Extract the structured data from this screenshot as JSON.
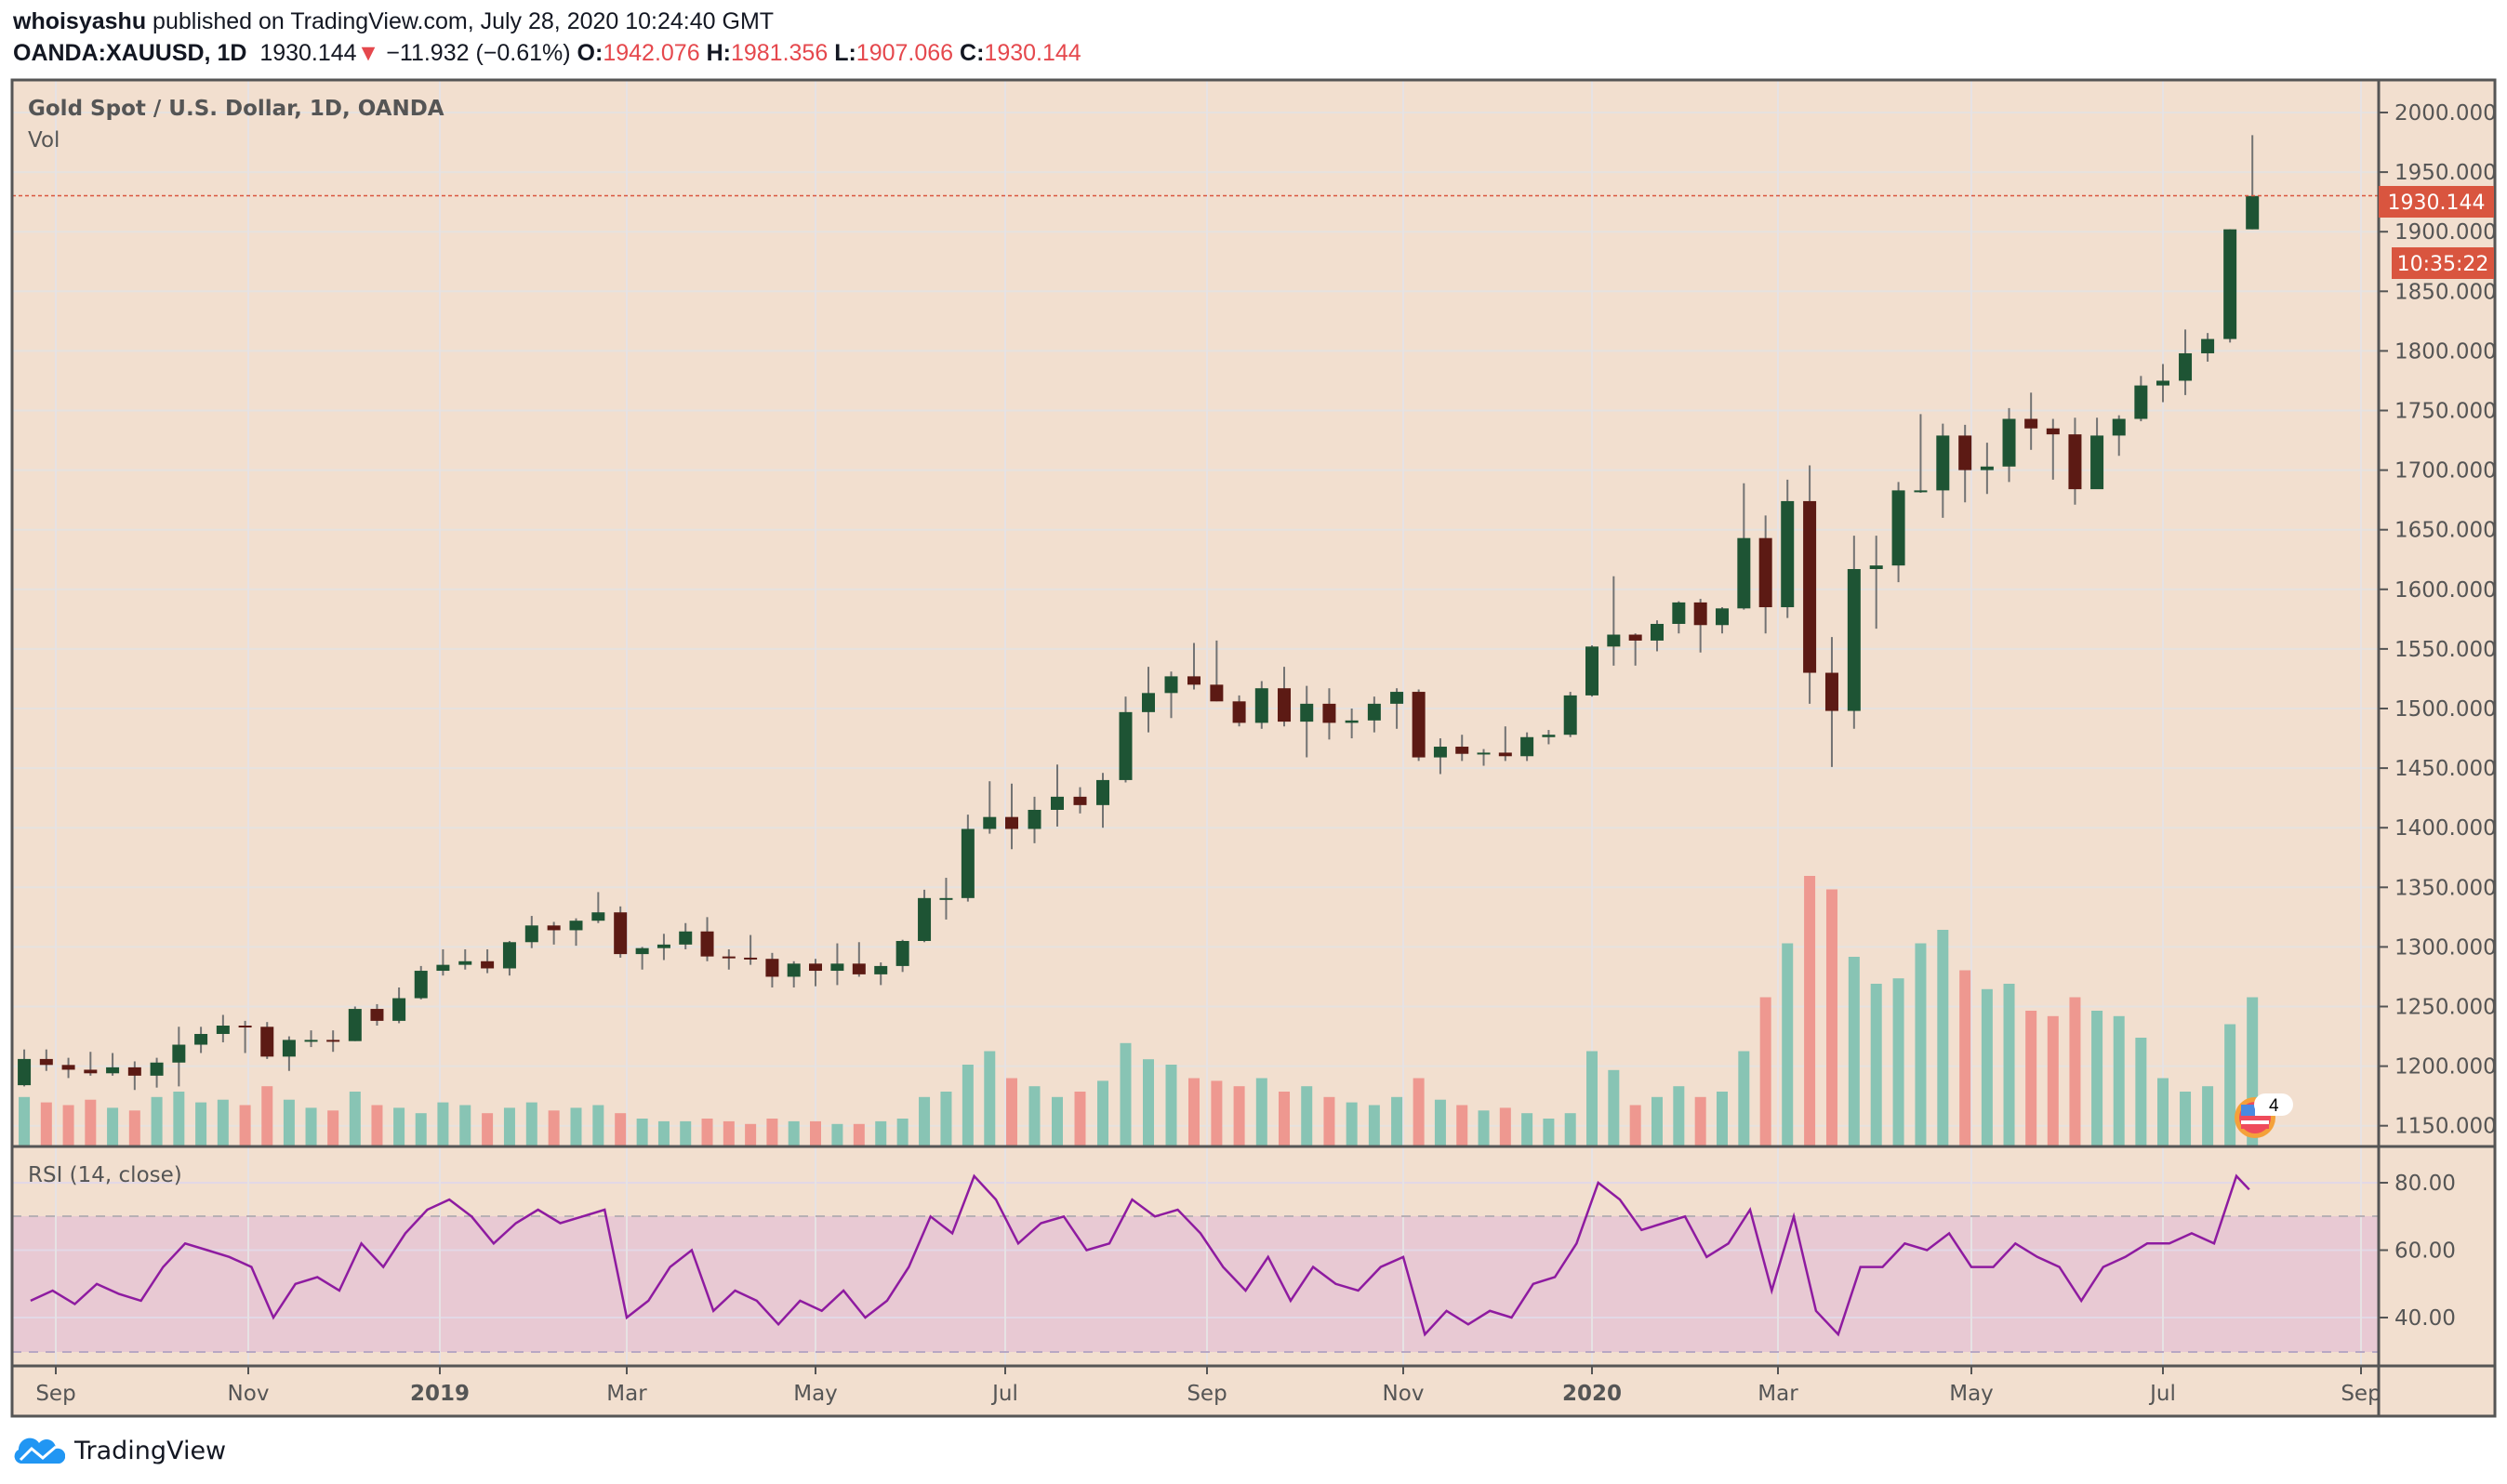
{
  "header": {
    "author": "whoisyashu",
    "published": "published on TradingView.com, July 28, 2020 10:24:40 GMT",
    "symbol": "OANDA:XAUUSD, 1D",
    "last": "1930.144",
    "change_icon": "triangle-down-icon",
    "change": "−11.932 (−0.61%)",
    "o_label": "O:",
    "o": "1942.076",
    "h_label": "H:",
    "h": "1981.356",
    "l_label": "L:",
    "l": "1907.066",
    "c_label": "C:",
    "c": "1930.144"
  },
  "footer": {
    "brand": "TradingView",
    "logo_icon": "tradingview-cloud-logo-icon"
  },
  "colors": {
    "background": "#f2dfcf",
    "up_candle": "#1e5434",
    "down_candle": "#5c1a14",
    "wick": "#737373",
    "volume_up": "#88c4b4",
    "volume_down": "#ee9890",
    "rsi_line": "#8e1ba0",
    "rsi_band": "#e8c9d3",
    "last_price": "#d9553f"
  },
  "chart_data": {
    "type": "candlestick",
    "title": "Gold Spot / U.S. Dollar, 1D, OANDA",
    "volume_label": "Vol",
    "rsi_label": "RSI (14, close)",
    "last_price_label": "1930.144",
    "countdown_label": "10:35:22",
    "event_badge": {
      "icon": "us-flag-economic-event-icon",
      "count": "4"
    },
    "ylim": [
      1125,
      2010
    ],
    "grid": true,
    "price_ticks": [
      "2000.000",
      "1950.000",
      "1900.000",
      "1850.000",
      "1800.000",
      "1750.000",
      "1700.000",
      "1650.000",
      "1600.000",
      "1550.000",
      "1500.000",
      "1450.000",
      "1400.000",
      "1350.000",
      "1300.000",
      "1250.000",
      "1200.000",
      "1150.000"
    ],
    "rsi_ticks": [
      "80.00",
      "60.00",
      "40.00"
    ],
    "rsi_band": [
      30,
      70
    ],
    "time_ticks": [
      {
        "label": "Sep",
        "date": "2018-09-01",
        "bold": false
      },
      {
        "label": "Nov",
        "date": "2018-11-01",
        "bold": false
      },
      {
        "label": "2019",
        "date": "2019-01-01",
        "bold": true
      },
      {
        "label": "Mar",
        "date": "2019-03-01",
        "bold": false
      },
      {
        "label": "May",
        "date": "2019-05-01",
        "bold": false
      },
      {
        "label": "Jul",
        "date": "2019-07-01",
        "bold": false
      },
      {
        "label": "Sep",
        "date": "2019-09-01",
        "bold": false
      },
      {
        "label": "Nov",
        "date": "2019-11-01",
        "bold": false
      },
      {
        "label": "2020",
        "date": "2020-01-01",
        "bold": true
      },
      {
        "label": "Mar",
        "date": "2020-03-01",
        "bold": false
      },
      {
        "label": "May",
        "date": "2020-05-01",
        "bold": false
      },
      {
        "label": "Jul",
        "date": "2020-07-01",
        "bold": false
      },
      {
        "label": "Sep",
        "date": "2020-09-01",
        "bold": false
      }
    ],
    "ohlc_columns": [
      "week",
      "open",
      "high",
      "low",
      "close"
    ],
    "ohlc": [
      [
        "2018-08-20",
        1184,
        1214,
        1183,
        1206
      ],
      [
        "2018-08-27",
        1206,
        1214,
        1196,
        1201
      ],
      [
        "2018-09-03",
        1201,
        1207,
        1190,
        1197
      ],
      [
        "2018-09-10",
        1197,
        1212,
        1192,
        1194
      ],
      [
        "2018-09-17",
        1194,
        1211,
        1192,
        1199
      ],
      [
        "2018-09-24",
        1199,
        1204,
        1180,
        1192
      ],
      [
        "2018-10-01",
        1192,
        1207,
        1182,
        1203
      ],
      [
        "2018-10-08",
        1203,
        1233,
        1183,
        1218
      ],
      [
        "2018-10-15",
        1218,
        1233,
        1211,
        1227
      ],
      [
        "2018-10-22",
        1227,
        1243,
        1220,
        1234
      ],
      [
        "2018-10-29",
        1234,
        1238,
        1211,
        1233
      ],
      [
        "2018-11-05",
        1233,
        1237,
        1206,
        1208
      ],
      [
        "2018-11-12",
        1208,
        1225,
        1196,
        1222
      ],
      [
        "2018-11-19",
        1222,
        1230,
        1216,
        1222
      ],
      [
        "2018-11-26",
        1222,
        1230,
        1212,
        1221
      ],
      [
        "2018-12-03",
        1221,
        1250,
        1221,
        1248
      ],
      [
        "2018-12-10",
        1248,
        1252,
        1234,
        1238
      ],
      [
        "2018-12-17",
        1238,
        1266,
        1236,
        1257
      ],
      [
        "2018-12-24",
        1257,
        1284,
        1256,
        1280
      ],
      [
        "2018-12-31",
        1280,
        1298,
        1276,
        1285
      ],
      [
        "2019-01-07",
        1285,
        1298,
        1281,
        1288
      ],
      [
        "2019-01-14",
        1288,
        1298,
        1278,
        1282
      ],
      [
        "2019-01-21",
        1282,
        1305,
        1276,
        1304
      ],
      [
        "2019-01-28",
        1304,
        1326,
        1299,
        1318
      ],
      [
        "2019-02-04",
        1318,
        1321,
        1302,
        1314
      ],
      [
        "2019-02-11",
        1314,
        1324,
        1301,
        1322
      ],
      [
        "2019-02-18",
        1322,
        1346,
        1320,
        1329
      ],
      [
        "2019-02-25",
        1329,
        1334,
        1291,
        1294
      ],
      [
        "2019-03-04",
        1294,
        1300,
        1281,
        1299
      ],
      [
        "2019-03-11",
        1299,
        1311,
        1289,
        1302
      ],
      [
        "2019-03-18",
        1302,
        1320,
        1298,
        1313
      ],
      [
        "2019-03-25",
        1313,
        1325,
        1288,
        1292
      ],
      [
        "2019-04-01",
        1292,
        1298,
        1281,
        1291
      ],
      [
        "2019-04-08",
        1291,
        1310,
        1285,
        1290
      ],
      [
        "2019-04-15",
        1290,
        1295,
        1266,
        1275
      ],
      [
        "2019-04-22",
        1275,
        1288,
        1266,
        1286
      ],
      [
        "2019-04-29",
        1286,
        1290,
        1267,
        1280
      ],
      [
        "2019-05-06",
        1280,
        1303,
        1268,
        1286
      ],
      [
        "2019-05-13",
        1286,
        1304,
        1275,
        1277
      ],
      [
        "2019-05-20",
        1277,
        1287,
        1268,
        1284
      ],
      [
        "2019-05-27",
        1284,
        1306,
        1279,
        1305
      ],
      [
        "2019-06-03",
        1305,
        1348,
        1304,
        1341
      ],
      [
        "2019-06-10",
        1341,
        1358,
        1323,
        1341
      ],
      [
        "2019-06-17",
        1341,
        1411,
        1338,
        1399
      ],
      [
        "2019-06-24",
        1399,
        1439,
        1395,
        1409
      ],
      [
        "2019-07-01",
        1409,
        1437,
        1382,
        1399
      ],
      [
        "2019-07-08",
        1399,
        1426,
        1387,
        1415
      ],
      [
        "2019-07-15",
        1415,
        1453,
        1401,
        1426
      ],
      [
        "2019-07-22",
        1426,
        1434,
        1412,
        1419
      ],
      [
        "2019-07-29",
        1419,
        1446,
        1400,
        1440
      ],
      [
        "2019-08-05",
        1440,
        1510,
        1438,
        1497
      ],
      [
        "2019-08-12",
        1497,
        1535,
        1480,
        1513
      ],
      [
        "2019-08-19",
        1513,
        1531,
        1492,
        1527
      ],
      [
        "2019-08-26",
        1527,
        1555,
        1516,
        1520
      ],
      [
        "2019-09-02",
        1520,
        1557,
        1506,
        1506
      ],
      [
        "2019-09-09",
        1506,
        1511,
        1485,
        1488
      ],
      [
        "2019-09-16",
        1488,
        1523,
        1483,
        1517
      ],
      [
        "2019-09-23",
        1517,
        1535,
        1485,
        1489
      ],
      [
        "2019-09-30",
        1489,
        1519,
        1459,
        1504
      ],
      [
        "2019-10-07",
        1504,
        1517,
        1474,
        1488
      ],
      [
        "2019-10-14",
        1488,
        1500,
        1475,
        1490
      ],
      [
        "2019-10-21",
        1490,
        1510,
        1480,
        1504
      ],
      [
        "2019-10-28",
        1504,
        1517,
        1483,
        1514
      ],
      [
        "2019-11-04",
        1514,
        1516,
        1456,
        1459
      ],
      [
        "2019-11-11",
        1459,
        1475,
        1445,
        1468
      ],
      [
        "2019-11-18",
        1468,
        1478,
        1456,
        1462
      ],
      [
        "2019-11-25",
        1462,
        1466,
        1452,
        1463
      ],
      [
        "2019-12-02",
        1463,
        1485,
        1456,
        1460
      ],
      [
        "2019-12-09",
        1460,
        1480,
        1456,
        1476
      ],
      [
        "2019-12-16",
        1476,
        1482,
        1470,
        1478
      ],
      [
        "2019-12-23",
        1478,
        1514,
        1476,
        1511
      ],
      [
        "2019-12-30",
        1511,
        1553,
        1510,
        1552
      ],
      [
        "2020-01-06",
        1552,
        1611,
        1536,
        1562
      ],
      [
        "2020-01-13",
        1562,
        1563,
        1536,
        1557
      ],
      [
        "2020-01-20",
        1557,
        1574,
        1548,
        1571
      ],
      [
        "2020-01-27",
        1571,
        1590,
        1563,
        1589
      ],
      [
        "2020-02-03",
        1589,
        1592,
        1547,
        1570
      ],
      [
        "2020-02-10",
        1570,
        1585,
        1563,
        1584
      ],
      [
        "2020-02-17",
        1584,
        1689,
        1583,
        1643
      ],
      [
        "2020-02-24",
        1643,
        1662,
        1563,
        1585
      ],
      [
        "2020-03-02",
        1585,
        1692,
        1576,
        1674
      ],
      [
        "2020-03-09",
        1674,
        1704,
        1504,
        1530
      ],
      [
        "2020-03-16",
        1530,
        1560,
        1451,
        1498
      ],
      [
        "2020-03-23",
        1498,
        1645,
        1483,
        1617
      ],
      [
        "2020-03-30",
        1617,
        1645,
        1567,
        1620
      ],
      [
        "2020-04-06",
        1620,
        1690,
        1606,
        1683
      ],
      [
        "2020-04-13",
        1683,
        1747,
        1681,
        1683
      ],
      [
        "2020-04-20",
        1683,
        1739,
        1660,
        1729
      ],
      [
        "2020-04-27",
        1729,
        1738,
        1673,
        1700
      ],
      [
        "2020-05-04",
        1700,
        1723,
        1680,
        1703
      ],
      [
        "2020-05-11",
        1703,
        1752,
        1690,
        1743
      ],
      [
        "2020-05-18",
        1743,
        1765,
        1717,
        1735
      ],
      [
        "2020-05-25",
        1735,
        1743,
        1692,
        1730
      ],
      [
        "2020-06-01",
        1730,
        1744,
        1671,
        1684
      ],
      [
        "2020-06-08",
        1684,
        1744,
        1685,
        1729
      ],
      [
        "2020-06-15",
        1729,
        1746,
        1712,
        1743
      ],
      [
        "2020-06-22",
        1743,
        1779,
        1741,
        1771
      ],
      [
        "2020-06-29",
        1771,
        1789,
        1757,
        1775
      ],
      [
        "2020-07-06",
        1775,
        1818,
        1763,
        1798
      ],
      [
        "2020-07-13",
        1798,
        1815,
        1791,
        1810
      ],
      [
        "2020-07-20",
        1810,
        1902,
        1807,
        1902
      ],
      [
        "2020-07-27",
        1902,
        1981,
        1902,
        1930
      ]
    ],
    "volume_relative": [
      18,
      16,
      15,
      17,
      14,
      13,
      18,
      20,
      16,
      17,
      15,
      22,
      17,
      14,
      13,
      20,
      15,
      14,
      12,
      16,
      15,
      12,
      14,
      16,
      13,
      14,
      15,
      12,
      10,
      9,
      9,
      10,
      9,
      8,
      10,
      9,
      9,
      8,
      8,
      9,
      10,
      18,
      20,
      30,
      35,
      25,
      22,
      18,
      20,
      24,
      38,
      32,
      30,
      25,
      24,
      22,
      25,
      20,
      22,
      18,
      16,
      15,
      18,
      25,
      17,
      15,
      13,
      14,
      12,
      10,
      12,
      35,
      28,
      15,
      18,
      22,
      18,
      20,
      35,
      55,
      75,
      100,
      95,
      70,
      60,
      62,
      75,
      80,
      65,
      58,
      60,
      50,
      48,
      55,
      50,
      48,
      40,
      25,
      20,
      22,
      45,
      55
    ],
    "rsi": [
      45,
      48,
      44,
      50,
      47,
      45,
      55,
      62,
      60,
      58,
      55,
      40,
      50,
      52,
      48,
      62,
      55,
      65,
      72,
      75,
      70,
      62,
      68,
      72,
      68,
      70,
      72,
      40,
      45,
      55,
      60,
      42,
      48,
      45,
      38,
      45,
      42,
      48,
      40,
      45,
      55,
      70,
      65,
      82,
      75,
      62,
      68,
      70,
      60,
      62,
      75,
      70,
      72,
      65,
      55,
      48,
      58,
      45,
      55,
      50,
      48,
      55,
      58,
      35,
      42,
      38,
      42,
      40,
      50,
      52,
      62,
      80,
      75,
      66,
      68,
      70,
      58,
      62,
      72,
      48,
      70,
      42,
      35,
      55,
      55,
      62,
      60,
      65,
      55,
      55,
      62,
      58,
      55,
      45,
      55,
      58,
      62,
      62,
      65,
      62,
      82,
      78
    ]
  }
}
